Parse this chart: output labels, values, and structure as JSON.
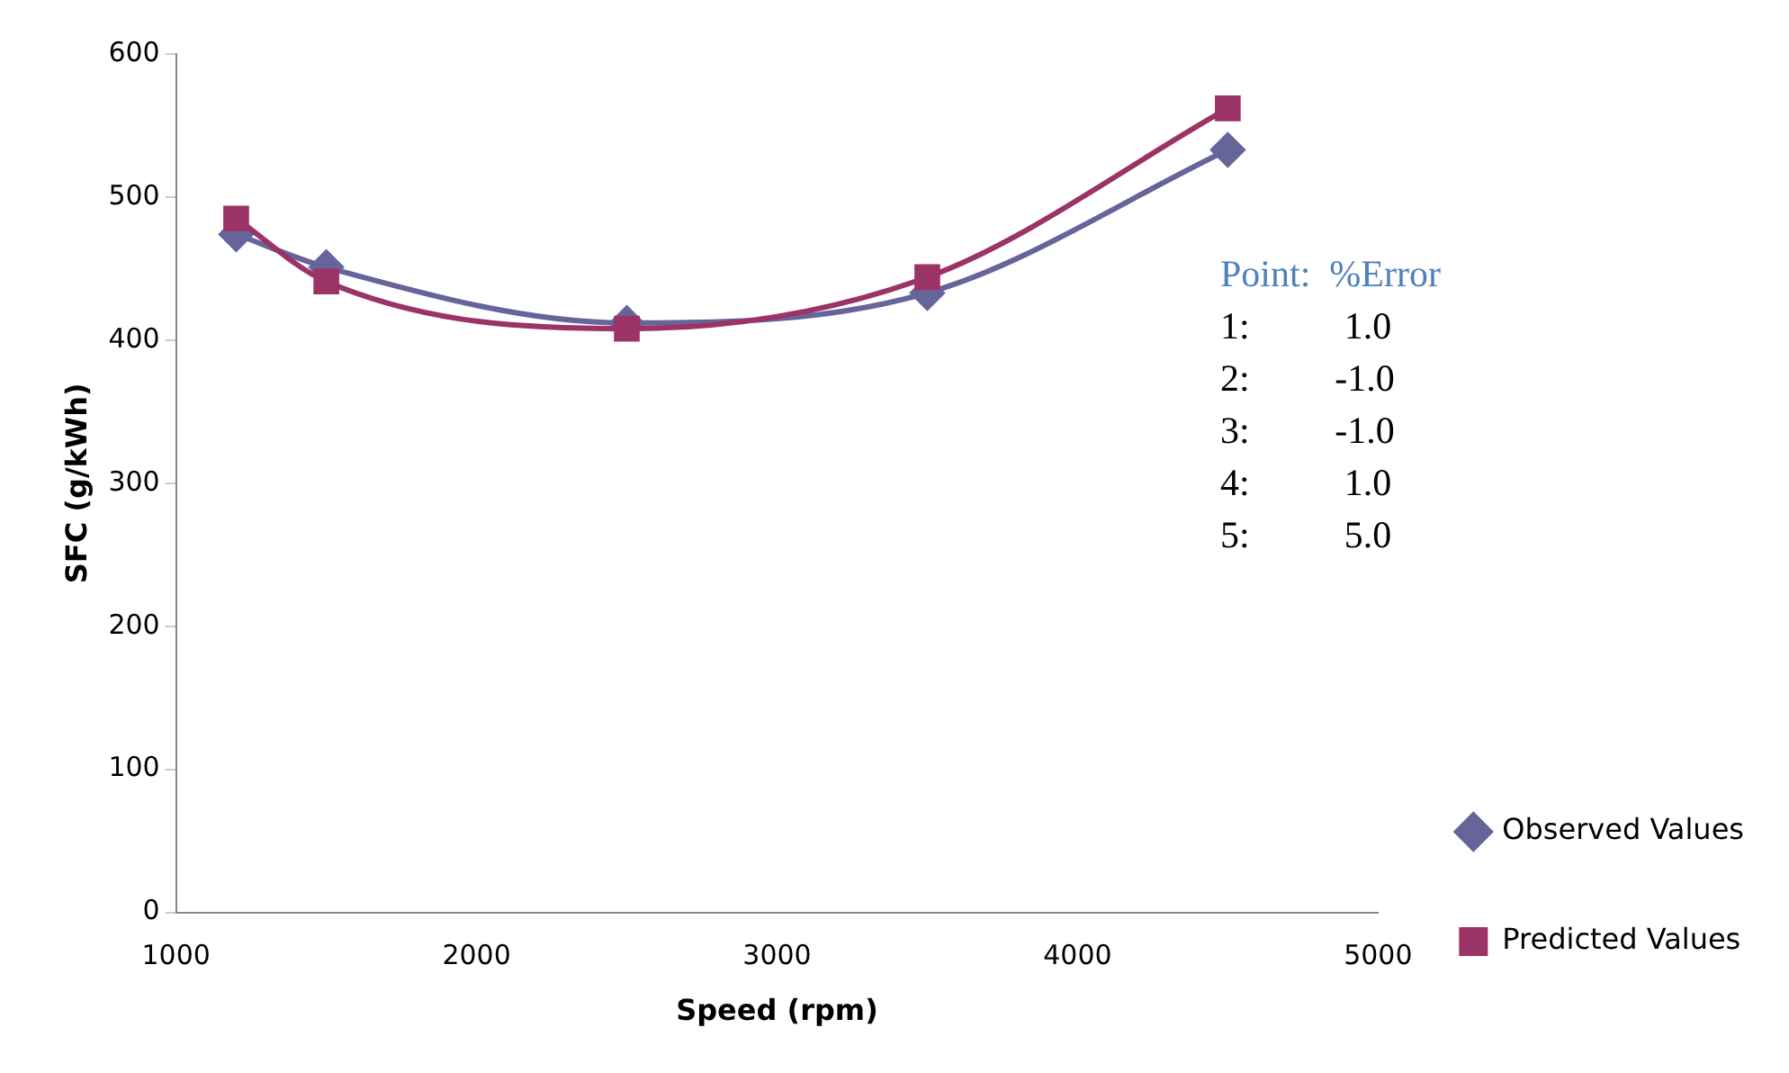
{
  "chart_data": {
    "type": "line",
    "xlabel": "Speed (rpm)",
    "ylabel": "SFC (g/kWh)",
    "x": [
      1200,
      1500,
      2500,
      3500,
      4500
    ],
    "series": [
      {
        "name": "Observed Values",
        "color": "#65659c",
        "marker": "diamond",
        "values": [
          474,
          451,
          412,
          433,
          533
        ]
      },
      {
        "name": "Predicted Values",
        "color": "#9b3366",
        "marker": "square",
        "values": [
          485,
          441,
          408,
          444,
          562
        ]
      }
    ],
    "xlim": [
      1000,
      5000
    ],
    "xticks": [
      1000,
      2000,
      3000,
      4000,
      5000
    ],
    "ylim": [
      0,
      600
    ],
    "yticks": [
      0,
      100,
      200,
      300,
      400,
      500,
      600
    ],
    "grid": false,
    "legend": "bottom right",
    "line_style": "solid",
    "annotations": [
      "Point:  %Error",
      "1:          1.0",
      "2:         -1.0",
      "3:         -1.0",
      "4:          1.0",
      "5:          5.0"
    ]
  }
}
